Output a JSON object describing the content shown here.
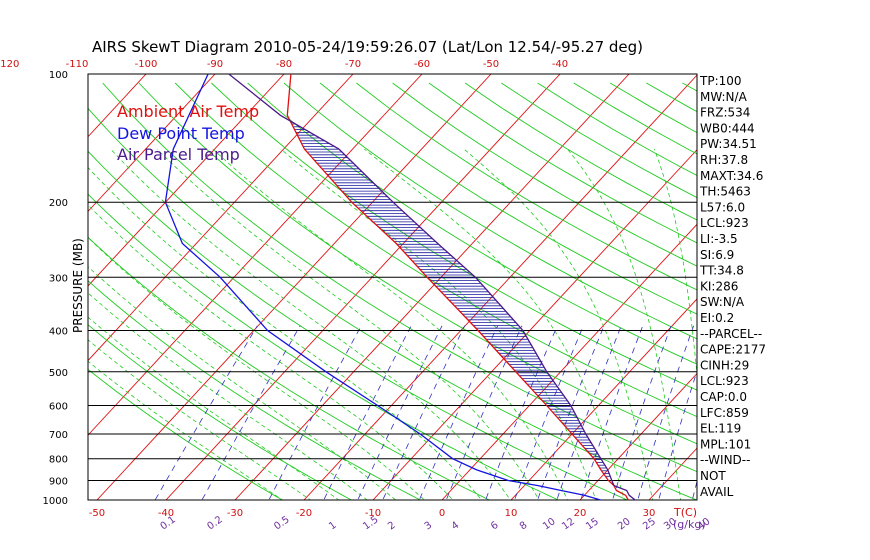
{
  "chart_data": {
    "type": "line",
    "title": "AIRS SkewT Diagram 2010-05-24/19:59:26.07 (Lat/Lon 12.54/-95.27 deg)",
    "ylabel": "PRESSURE (MB)",
    "xlabel": "T(C)",
    "mixing_ratio_unit": "(g/kg)",
    "y_scale": "log",
    "ylim": [
      1000,
      100
    ],
    "pressure_ticks": [
      100,
      200,
      300,
      400,
      500,
      600,
      700,
      800,
      900,
      1000
    ],
    "temp_ticks_bottom": [
      -50,
      -40,
      -30,
      -20,
      -10,
      0,
      10,
      20,
      30
    ],
    "temp_ticks_top": [
      -120,
      -110,
      -100,
      -90,
      -80,
      -70,
      -60,
      -50,
      -40
    ],
    "mixing_ratio_labels": [
      "0.1",
      "0.2",
      "0.5",
      "1",
      "1.5",
      "2",
      "3",
      "4",
      "6",
      "8",
      "10",
      "12",
      "15",
      "20",
      "25",
      "30",
      "40"
    ],
    "legend": [
      {
        "label": "Ambient Air Temp",
        "color": "#e01010"
      },
      {
        "label": "Dew Point Temp",
        "color": "#1414e0"
      },
      {
        "label": "Air Parcel Temp",
        "color": "#4a1a8a"
      }
    ],
    "series": [
      {
        "name": "Ambient Air Temp",
        "color": "#e01010",
        "points": [
          [
            1000,
            27
          ],
          [
            975,
            26
          ],
          [
            950,
            24
          ],
          [
            925,
            23
          ],
          [
            900,
            21.5
          ],
          [
            850,
            19
          ],
          [
            800,
            16.5
          ],
          [
            700,
            10
          ],
          [
            600,
            2.5
          ],
          [
            500,
            -6.5
          ],
          [
            400,
            -17.5
          ],
          [
            300,
            -32
          ],
          [
            250,
            -41
          ],
          [
            200,
            -53
          ],
          [
            150,
            -67
          ],
          [
            125,
            -74
          ],
          [
            100,
            -79
          ]
        ]
      },
      {
        "name": "Dew Point Temp",
        "color": "#1414e0",
        "points": [
          [
            1000,
            23
          ],
          [
            975,
            20
          ],
          [
            950,
            16
          ],
          [
            925,
            12
          ],
          [
            900,
            7
          ],
          [
            850,
            1
          ],
          [
            800,
            -4
          ],
          [
            700,
            -12
          ],
          [
            600,
            -22
          ],
          [
            500,
            -34
          ],
          [
            400,
            -48
          ],
          [
            300,
            -62
          ],
          [
            250,
            -72
          ],
          [
            200,
            -80
          ],
          [
            150,
            -86
          ],
          [
            100,
            -91
          ]
        ]
      },
      {
        "name": "Air Parcel Temp",
        "color": "#4a1a8a",
        "points": [
          [
            1000,
            28
          ],
          [
            975,
            26.5
          ],
          [
            950,
            25.5
          ],
          [
            925,
            23
          ],
          [
            900,
            22
          ],
          [
            850,
            20
          ],
          [
            800,
            17.5
          ],
          [
            700,
            12
          ],
          [
            600,
            6
          ],
          [
            500,
            -2
          ],
          [
            400,
            -11
          ],
          [
            300,
            -25
          ],
          [
            250,
            -35
          ],
          [
            200,
            -47
          ],
          [
            150,
            -62
          ],
          [
            125,
            -75
          ],
          [
            100,
            -88
          ]
        ]
      }
    ],
    "indices": [
      "TP:100",
      "MW:N/A",
      "FRZ:534",
      "WB0:444",
      "PW:34.51",
      "RH:37.8",
      "MAXT:34.6",
      "TH:5463",
      "L57:6.0",
      "LCL:923",
      "LI:-3.5",
      "SI:6.9",
      "TT:34.8",
      "KI:286",
      "SW:N/A",
      "EI:0.2",
      "--PARCEL--",
      "CAPE:2177",
      "CINH:29",
      "LCL:923",
      "CAP:0.0",
      "LFC:859",
      "EL:119",
      "MPL:101",
      "--WIND--",
      "NOT",
      "AVAIL"
    ],
    "colors": {
      "isotherm": "#e01010",
      "dry_adiabat": "#20cc20",
      "moist_adiabat": "#20cc20",
      "mixing_ratio": "#3030c0",
      "isobar": "#000000",
      "hatch": "#1a1aa0"
    }
  }
}
